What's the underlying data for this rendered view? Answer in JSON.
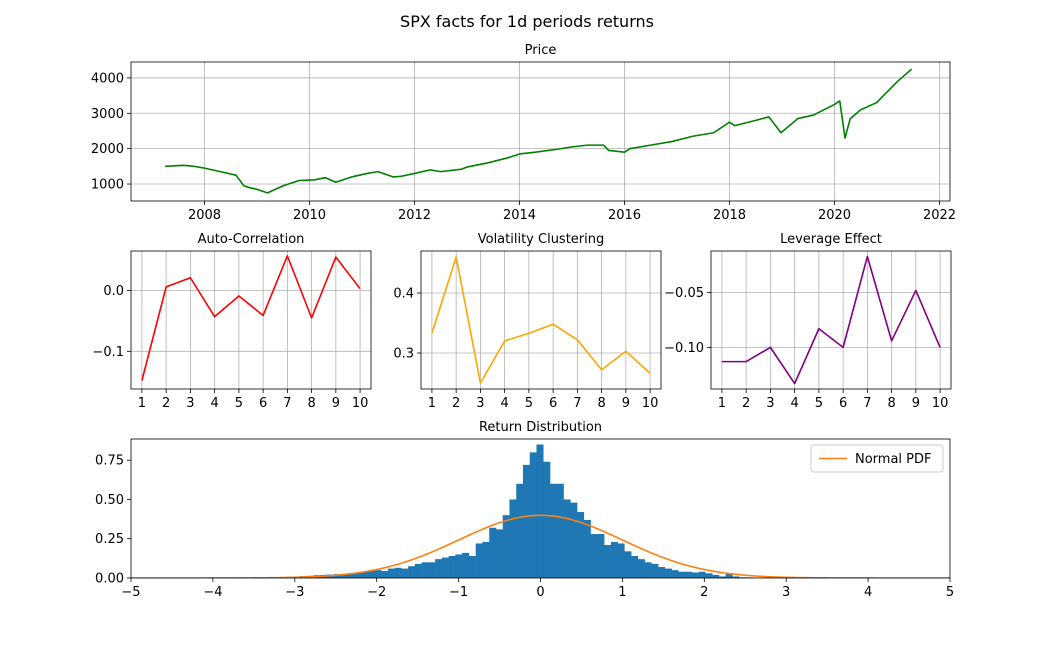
{
  "figure": {
    "suptitle": "SPX facts for 1d periods returns"
  },
  "chart_data": [
    {
      "id": "price",
      "type": "line",
      "title": "Price",
      "color": "#008000",
      "xlim": [
        2006.6,
        2022.2
      ],
      "ylim": [
        520,
        4450
      ],
      "xticks": [
        2008,
        2010,
        2012,
        2014,
        2016,
        2018,
        2020,
        2022
      ],
      "yticks": [
        1000,
        2000,
        3000,
        4000
      ],
      "grid": true,
      "x": [
        2007.25,
        2007.6,
        2007.8,
        2008.0,
        2008.3,
        2008.6,
        2008.75,
        2008.85,
        2009.0,
        2009.2,
        2009.5,
        2009.8,
        2010.1,
        2010.3,
        2010.5,
        2010.8,
        2011.1,
        2011.3,
        2011.6,
        2011.75,
        2012.0,
        2012.3,
        2012.5,
        2012.9,
        2013.0,
        2013.4,
        2013.8,
        2014.0,
        2014.3,
        2014.7,
        2015.0,
        2015.3,
        2015.6,
        2015.7,
        2016.0,
        2016.1,
        2016.5,
        2016.9,
        2017.3,
        2017.7,
        2018.0,
        2018.1,
        2018.5,
        2018.75,
        2018.98,
        2019.3,
        2019.6,
        2020.0,
        2020.1,
        2020.2,
        2020.3,
        2020.5,
        2020.8,
        2021.0,
        2021.2,
        2021.47
      ],
      "y": [
        1500,
        1530,
        1500,
        1450,
        1350,
        1250,
        950,
        900,
        850,
        750,
        950,
        1100,
        1120,
        1180,
        1050,
        1200,
        1300,
        1350,
        1200,
        1220,
        1300,
        1400,
        1350,
        1420,
        1480,
        1600,
        1750,
        1850,
        1900,
        1980,
        2050,
        2100,
        2100,
        1950,
        1900,
        2000,
        2100,
        2200,
        2350,
        2450,
        2750,
        2650,
        2800,
        2900,
        2450,
        2850,
        2950,
        3250,
        3350,
        2300,
        2850,
        3100,
        3300,
        3600,
        3900,
        4250
      ]
    },
    {
      "id": "autocorr",
      "type": "line",
      "title": "Auto-Correlation",
      "color": "#ff0000",
      "x": [
        1,
        2,
        3,
        4,
        5,
        6,
        7,
        8,
        9,
        10
      ],
      "y": [
        -0.148,
        0.006,
        0.021,
        -0.043,
        -0.009,
        -0.041,
        0.057,
        -0.045,
        0.055,
        0.003
      ],
      "xlim": [
        0.55,
        10.45
      ],
      "ylim": [
        -0.162,
        0.065
      ],
      "xticks": [
        1,
        2,
        3,
        4,
        5,
        6,
        7,
        8,
        9,
        10
      ],
      "yticks": [
        -0.1,
        0.0
      ],
      "ytick_labels": [
        "−0.1",
        "0.0"
      ],
      "grid": true
    },
    {
      "id": "volclust",
      "type": "line",
      "title": "Volatility Clustering",
      "color": "#ffa500",
      "x": [
        1,
        2,
        3,
        4,
        5,
        6,
        7,
        8,
        9,
        10
      ],
      "y": [
        0.333,
        0.46,
        0.25,
        0.32,
        0.333,
        0.348,
        0.322,
        0.272,
        0.303,
        0.266
      ],
      "xlim": [
        0.55,
        10.45
      ],
      "ylim": [
        0.24,
        0.47
      ],
      "xticks": [
        1,
        2,
        3,
        4,
        5,
        6,
        7,
        8,
        9,
        10
      ],
      "yticks": [
        0.3,
        0.4
      ],
      "ytick_labels": [
        "0.3",
        "0.4"
      ],
      "grid": true
    },
    {
      "id": "leverage",
      "type": "line",
      "title": "Leverage Effect",
      "color": "#800080",
      "x": [
        1,
        2,
        3,
        4,
        5,
        6,
        7,
        8,
        9,
        10
      ],
      "y": [
        -0.113,
        -0.113,
        -0.1,
        -0.133,
        -0.083,
        -0.1,
        -0.017,
        -0.094,
        -0.048,
        -0.1
      ],
      "xlim": [
        0.55,
        10.45
      ],
      "ylim": [
        -0.138,
        -0.012
      ],
      "xticks": [
        1,
        2,
        3,
        4,
        5,
        6,
        7,
        8,
        9,
        10
      ],
      "yticks": [
        -0.1,
        -0.05
      ],
      "ytick_labels": [
        "−0.10",
        "−0.05"
      ],
      "grid": true
    },
    {
      "id": "retdist",
      "type": "bar",
      "title": "Return Distribution",
      "color": "#1f77b4",
      "xlim": [
        -5,
        5
      ],
      "ylim": [
        0,
        0.885
      ],
      "xticks": [
        -5,
        -4,
        -3,
        -2,
        -1,
        0,
        1,
        2,
        3,
        4,
        5
      ],
      "xtick_labels": [
        "−5",
        "−4",
        "−3",
        "−2",
        "−1",
        "0",
        "1",
        "2",
        "3",
        "4",
        "5"
      ],
      "yticks": [
        0,
        0.25,
        0.5,
        0.75
      ],
      "ytick_labels": [
        "0.00",
        "0.25",
        "0.50",
        "0.75"
      ],
      "grid": false,
      "legend": "top-right",
      "bin_width": 0.0825,
      "x": [
        -3.638,
        -3.555,
        -3.473,
        -3.39,
        -3.308,
        -3.225,
        -3.143,
        -3.06,
        -2.978,
        -2.895,
        -2.813,
        -2.73,
        -2.648,
        -2.565,
        -2.483,
        -2.4,
        -2.318,
        -2.235,
        -2.153,
        -2.07,
        -1.988,
        -1.905,
        -1.823,
        -1.74,
        -1.658,
        -1.575,
        -1.493,
        -1.41,
        -1.328,
        -1.245,
        -1.163,
        -1.08,
        -0.998,
        -0.915,
        -0.833,
        -0.75,
        -0.668,
        -0.585,
        -0.503,
        -0.42,
        -0.338,
        -0.255,
        -0.173,
        -0.09,
        -0.008,
        0.075,
        0.157,
        0.24,
        0.322,
        0.405,
        0.487,
        0.57,
        0.652,
        0.735,
        0.817,
        0.9,
        0.982,
        1.065,
        1.147,
        1.23,
        1.312,
        1.395,
        1.477,
        1.56,
        1.642,
        1.725,
        1.807,
        1.89,
        1.972,
        2.055,
        2.137,
        2.22,
        2.302,
        2.385,
        2.467,
        2.55,
        2.632,
        2.715,
        2.797,
        2.88,
        2.962,
        3.045,
        3.127,
        3.21,
        3.292,
        3.375
      ],
      "values": [
        0.005,
        0.003,
        0.004,
        0.005,
        0.006,
        0.004,
        0.005,
        0.008,
        0.01,
        0.012,
        0.014,
        0.018,
        0.02,
        0.022,
        0.025,
        0.02,
        0.03,
        0.035,
        0.04,
        0.045,
        0.05,
        0.045,
        0.06,
        0.065,
        0.06,
        0.075,
        0.09,
        0.1,
        0.1,
        0.12,
        0.13,
        0.14,
        0.15,
        0.16,
        0.14,
        0.22,
        0.23,
        0.32,
        0.31,
        0.4,
        0.5,
        0.6,
        0.72,
        0.8,
        0.85,
        0.74,
        0.6,
        0.6,
        0.5,
        0.48,
        0.42,
        0.37,
        0.28,
        0.28,
        0.21,
        0.23,
        0.22,
        0.17,
        0.14,
        0.12,
        0.1,
        0.09,
        0.07,
        0.06,
        0.05,
        0.04,
        0.04,
        0.035,
        0.04,
        0.03,
        0.02,
        0.01,
        0.03,
        0.01,
        0.005,
        0.004,
        0.003,
        0.003,
        0.002,
        0.002,
        0.002,
        0.002,
        0.001,
        0.001,
        0.001,
        0.001
      ],
      "overlay": {
        "type": "line",
        "name": "Normal PDF",
        "color": "#ff7f0e",
        "mean": 0,
        "std": 1
      }
    }
  ]
}
